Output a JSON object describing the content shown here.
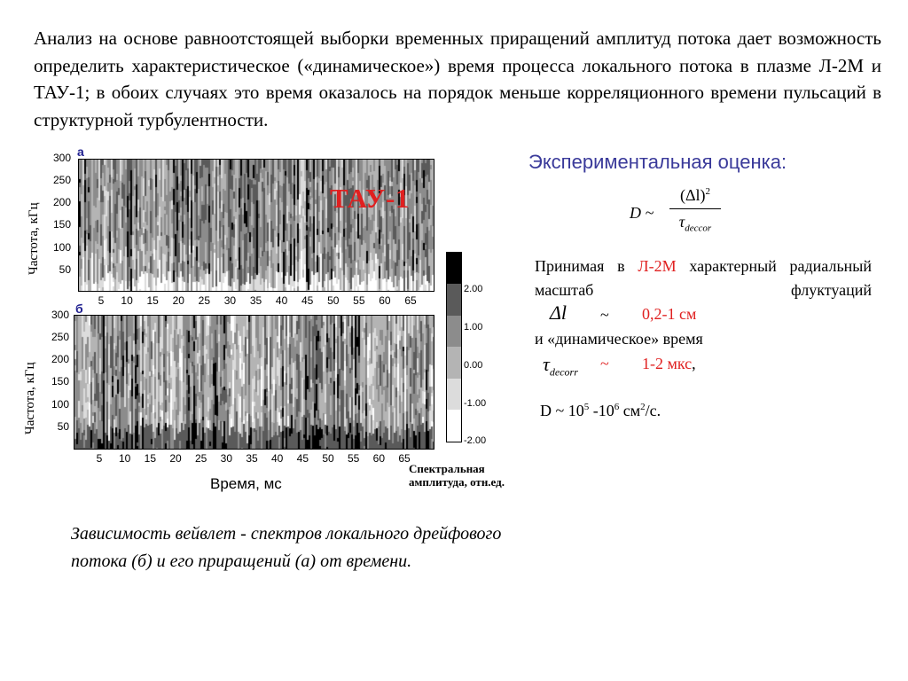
{
  "intro": "Анализ на основе равноотстоящей выборки временных приращений амплитуд потока дает возможность определить характеристическое («динамическое») время процесса локального потока в плазме Л-2М и ТАУ-1; в обоих случаях это время оказалось на порядок меньше корреляционного времени пульсаций в структурной турбулентности.",
  "figure": {
    "panel_a_label": "а",
    "panel_b_label": "б",
    "tau_label": "ТАУ-1",
    "ylabel": "Частота, кГц",
    "xlabel": "Время, мс",
    "yticks": [
      "300",
      "250",
      "200",
      "150",
      "100",
      "50"
    ],
    "xticks": [
      "5",
      "10",
      "15",
      "20",
      "25",
      "30",
      "35",
      "40",
      "45",
      "50",
      "55",
      "60",
      "65"
    ],
    "colorbar_ticks": [
      "2.00",
      "1.00",
      "0.00",
      "-1.00",
      "-2.00"
    ],
    "colorbar_title_1": "Спектральная",
    "colorbar_title_2": "амплитуда, отн.ед.",
    "colorbar_colors": [
      "#000000",
      "#5a5a5a",
      "#8c8c8c",
      "#b4b4b4",
      "#dcdcdc",
      "#ffffff"
    ]
  },
  "caption": "Зависимость вейвлет - спектров локального дрейфового потока (б) и его приращений (а) от времени.",
  "estimate": {
    "title": "Экспериментальная оценка:",
    "formula_lhs": "D ~",
    "formula_num": "(Δl)",
    "formula_num_exp": "2",
    "formula_den": "τ",
    "formula_den_sub": "deccor",
    "para_text_1": "Принимая в",
    "para_device": "Л-2М",
    "para_text_2": "характерный радиальный масштаб флуктуаций",
    "dl_symbol": "Δl",
    "tilde": "~",
    "dl_value": "0,2-1 см",
    "dyn_time_text": "и «динамическое» время",
    "tau_symbol": "τ",
    "tau_sub": "decorr",
    "tau_value": "1-2 мкс",
    "comma": ",",
    "result_prefix": "D ~ 10",
    "result_exp1": "5",
    "result_mid": " -10",
    "result_exp2": "6",
    "result_unit": " см",
    "result_unit_exp": "2",
    "result_suffix": "/с."
  }
}
